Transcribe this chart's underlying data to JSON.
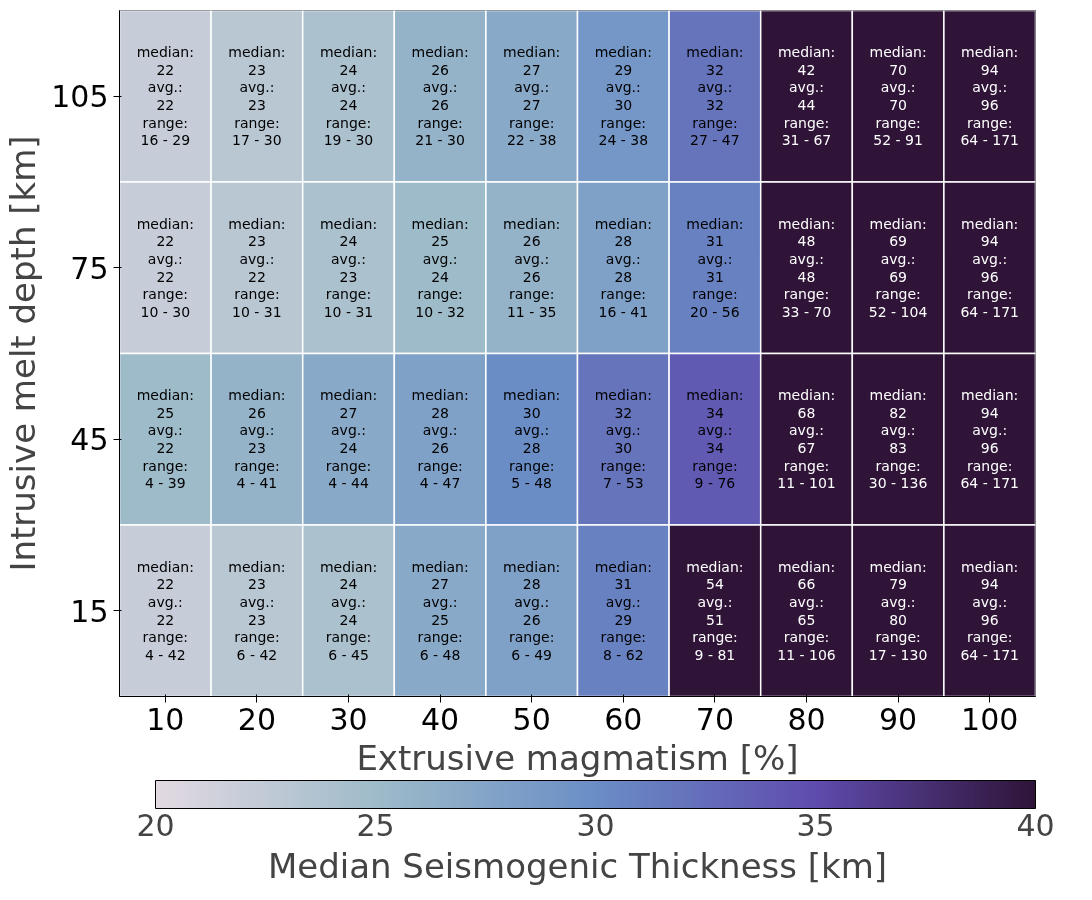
{
  "chart_data": {
    "type": "heatmap",
    "xlabel": "Extrusive magmatism [%]",
    "ylabel": "Intrusive melt depth [km]",
    "clabel": "Median Seismogenic Thickness [km]",
    "categories": [
      "10",
      "20",
      "30",
      "40",
      "50",
      "60",
      "70",
      "80",
      "90",
      "100"
    ],
    "y_categories": [
      "105",
      "75",
      "45",
      "15"
    ],
    "cells": [
      [
        22,
        23,
        24,
        26,
        27,
        29,
        32,
        42,
        70,
        94
      ],
      [
        22,
        23,
        24,
        25,
        26,
        28,
        31,
        48,
        69,
        94
      ],
      [
        25,
        26,
        27,
        28,
        30,
        32,
        34,
        68,
        82,
        94
      ],
      [
        22,
        23,
        24,
        27,
        28,
        31,
        54,
        66,
        79,
        94
      ]
    ],
    "cell_labels": [
      [
        "median:\n22\navg.:\n22\nrange:\n16 - 29",
        "median:\n23\navg.:\n23\nrange:\n17 - 30",
        "median:\n24\navg.:\n24\nrange:\n19 - 30",
        "median:\n26\navg.:\n26\nrange:\n21 - 30",
        "median:\n27\navg.:\n27\nrange:\n22 - 38",
        "median:\n29\navg.:\n30\nrange:\n24 - 38",
        "median:\n32\navg.:\n32\nrange:\n27 - 47",
        "median:\n42\navg.:\n44\nrange:\n31 - 67",
        "median:\n70\navg.:\n70\nrange:\n52 - 91",
        "median:\n94\navg.:\n96\nrange:\n64 - 171"
      ],
      [
        "median:\n22\navg.:\n22\nrange:\n10 - 30",
        "median:\n23\navg.:\n22\nrange:\n10 - 31",
        "median:\n24\navg.:\n23\nrange:\n10 - 31",
        "median:\n25\navg.:\n24\nrange:\n10 - 32",
        "median:\n26\navg.:\n26\nrange:\n11 - 35",
        "median:\n28\navg.:\n28\nrange:\n16 - 41",
        "median:\n31\navg.:\n31\nrange:\n20 - 56",
        "median:\n48\navg.:\n48\nrange:\n33 - 70",
        "median:\n69\navg.:\n69\nrange:\n52 - 104",
        "median:\n94\navg.:\n96\nrange:\n64 - 171"
      ],
      [
        "median:\n25\navg.:\n22\nrange:\n4 - 39",
        "median:\n26\navg.:\n23\nrange:\n4 - 41",
        "median:\n27\navg.:\n24\nrange:\n4 - 44",
        "median:\n28\navg.:\n26\nrange:\n4 - 47",
        "median:\n30\navg.:\n28\nrange:\n5 - 48",
        "median:\n32\navg.:\n30\nrange:\n7 - 53",
        "median:\n34\navg.:\n34\nrange:\n9 - 76",
        "median:\n68\navg.:\n67\nrange:\n11 - 101",
        "median:\n82\navg.:\n83\nrange:\n30 - 136",
        "median:\n94\navg.:\n96\nrange:\n64 - 171"
      ],
      [
        "median:\n22\navg.:\n22\nrange:\n4 - 42",
        "median:\n23\navg.:\n23\nrange:\n6 - 42",
        "median:\n24\navg.:\n24\nrange:\n6 - 45",
        "median:\n27\navg.:\n25\nrange:\n6 - 48",
        "median:\n28\navg.:\n26\nrange:\n6 - 49",
        "median:\n31\navg.:\n29\nrange:\n8 - 62",
        "median:\n54\navg.:\n51\nrange:\n9 - 81",
        "median:\n66\navg.:\n65\nrange:\n11 - 106",
        "median:\n79\navg.:\n80\nrange:\n17 - 130",
        "median:\n94\navg.:\n96\nrange:\n64 - 171"
      ]
    ],
    "clim": [
      20,
      40
    ],
    "cticks": [
      20,
      25,
      30,
      35,
      40
    ],
    "colors": [
      "#e2d9e2",
      "#9ebbc9",
      "#6a8ec6",
      "#5f4cae",
      "#2f1438"
    ]
  }
}
